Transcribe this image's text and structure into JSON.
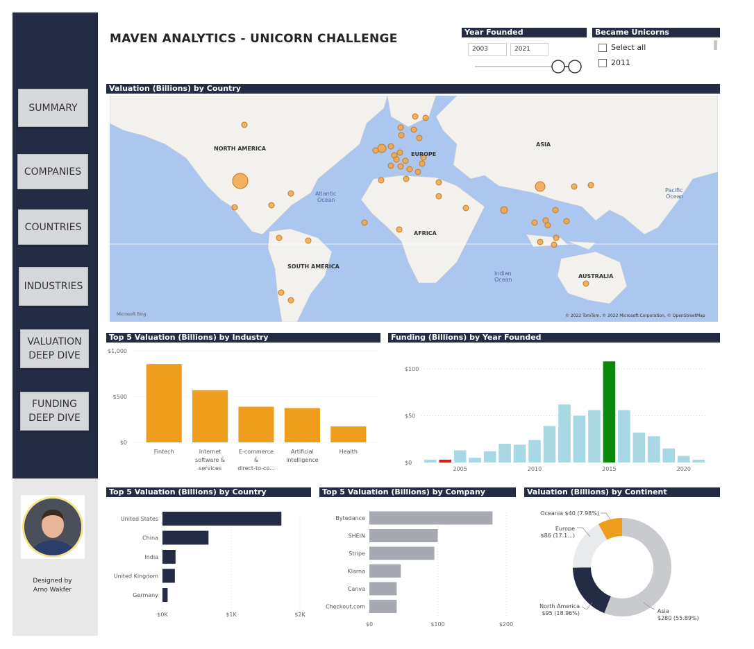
{
  "title": "MAVEN ANALYTICS - UNICORN CHALLENGE",
  "nav": {
    "summary": "SUMMARY",
    "companies": "COMPANIES",
    "countries": "COUNTRIES",
    "industries": "INDUSTRIES",
    "valuation_line1": "VALUATION",
    "valuation_line2": "DEEP DIVE",
    "funding_line1": "FUNDING",
    "funding_line2": "DEEP DIVE"
  },
  "designer": {
    "line1": "Designed by",
    "line2": "Arno Wakfer"
  },
  "slicers": {
    "year_founded": {
      "title": "Year Founded",
      "from": "2003",
      "to": "2021"
    },
    "became_unicorns": {
      "title": "Became Unicorns",
      "items": [
        "Select all",
        "2011"
      ]
    }
  },
  "map": {
    "title": "Valuation (Billions) by Country",
    "labels": {
      "north_america": "NORTH AMERICA",
      "south_america": "SOUTH AMERICA",
      "europe": "EUROPE",
      "africa": "AFRICA",
      "asia": "ASIA",
      "australia": "AUSTRALIA",
      "atlantic1": "Atlantic",
      "atlantic2": "Ocean",
      "pacific1": "Pacific",
      "pacific2": "Ocean",
      "indian1": "Indian",
      "indian2": "Ocean"
    },
    "attribution": "© 2022 TomTom, © 2022 Microsoft Corporation, © OpenStreetMap",
    "bing": "Microsoft Bing"
  },
  "colors": {
    "navy": "#242b45",
    "orange": "#ef9d1c",
    "gray_bar": "#a6a9b1",
    "light_blue": "#a8d8e4",
    "green": "#0a8a0a",
    "red": "#d62020",
    "map_water": "#abc7f0",
    "map_land": "#f2f1ee"
  },
  "chart_data": [
    {
      "type": "bar",
      "title": "Top 5 Valuation (Billions) by Industry",
      "categories": [
        "Fintech",
        "Internet software & services",
        "E-commerce & direct-to-co...",
        "Artificial intelligence",
        "Health"
      ],
      "category_lines": [
        [
          "Fintech"
        ],
        [
          "Internet",
          "software &",
          "services"
        ],
        [
          "E-commerce",
          "&",
          "direct-to-co..."
        ],
        [
          "Artificial",
          "intelligence"
        ],
        [
          "Health"
        ]
      ],
      "values": [
        855,
        570,
        390,
        375,
        175
      ],
      "ylim": [
        0,
        1000
      ],
      "yticks": [
        0,
        500,
        1000
      ],
      "ytick_labels": [
        "$0",
        "$500",
        "$1,000"
      ]
    },
    {
      "type": "bar",
      "title": "Funding (Billions) by Year Founded",
      "x": [
        2003,
        2004,
        2005,
        2006,
        2007,
        2008,
        2009,
        2010,
        2011,
        2012,
        2013,
        2014,
        2015,
        2016,
        2017,
        2018,
        2019,
        2020,
        2021
      ],
      "values": [
        3,
        3,
        13,
        5,
        12,
        20,
        19,
        24,
        39,
        62,
        50,
        56,
        108,
        56,
        32,
        28,
        15,
        7,
        3
      ],
      "highlight": {
        "max_year": 2015,
        "min_year": 2004
      },
      "ylim": [
        0,
        110
      ],
      "yticks": [
        0,
        50,
        100
      ],
      "ytick_labels": [
        "$0",
        "$50",
        "$100"
      ],
      "xticks": [
        2005,
        2010,
        2015,
        2020
      ]
    },
    {
      "type": "bar",
      "orientation": "horizontal",
      "title": "Top 5 Valuation (Billions) by Country",
      "categories": [
        "United States",
        "China",
        "India",
        "United Kingdom",
        "Germany"
      ],
      "values": [
        1730,
        670,
        190,
        180,
        75
      ],
      "xlim": [
        0,
        2000
      ],
      "xticks": [
        0,
        1000,
        2000
      ],
      "xtick_labels": [
        "$0K",
        "$1K",
        "$2K"
      ]
    },
    {
      "type": "bar",
      "orientation": "horizontal",
      "title": "Top 5 Valuation (Billions) by Company",
      "categories": [
        "Bytedance",
        "SHEIN",
        "Stripe",
        "Klarna",
        "Canva",
        "Checkout.com"
      ],
      "values": [
        180,
        100,
        95,
        46,
        40,
        40
      ],
      "xlim": [
        0,
        200
      ],
      "xticks": [
        0,
        100,
        200
      ],
      "xtick_labels": [
        "$0",
        "$100",
        "$200"
      ]
    },
    {
      "type": "pie",
      "title": "Valuation (Billions) by Continent",
      "slices": [
        {
          "name": "Asia",
          "value": 280,
          "label_line1": "Asia",
          "label_line2": "$280 (55.89%)",
          "color": "#c8cacd"
        },
        {
          "name": "North America",
          "value": 95,
          "label_line1": "North America",
          "label_line2": "$95 (18.96%)",
          "color": "#242b45"
        },
        {
          "name": "Europe",
          "value": 86,
          "label_line1": "Europe",
          "label_line2": "$86 (17.1...)",
          "color": "#e9eaec"
        },
        {
          "name": "Oceania",
          "value": 40,
          "label_line1": "Oceania $40 (7.98%)",
          "label_line2": "",
          "color": "#ef9d1c"
        }
      ]
    }
  ]
}
